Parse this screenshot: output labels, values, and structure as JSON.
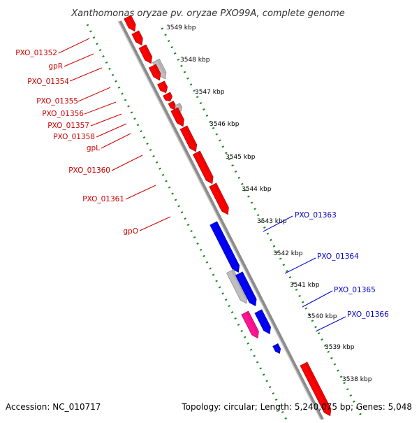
{
  "title": "Xanthomonas oryzae pv. oryzae PXO99A, complete genome",
  "accession": "Accession: NC_010717",
  "topology": "Topology: circular; Length: 5,240,075 bp; Genes: 5,048",
  "ticks": [
    "3549 kbp",
    "3548 kbp",
    "3547 kbp",
    "3546 kbp",
    "3545 kbp",
    "3544 kbp",
    "3543 kbp",
    "3542 kbp",
    "3541 kbp",
    "3540 kbp",
    "3539 kbp",
    "3538 kbp"
  ],
  "labels_left": [
    "PXO_01352",
    "gpR",
    "PXO_01354",
    "PXO_01355",
    "PXO_01356",
    "PXO_01357",
    "PXO_01358",
    "gpL",
    "PXO_01360",
    "PXO_01361",
    "gpO"
  ],
  "labels_right": [
    "PXO_01363",
    "PXO_01364",
    "PXO_01365",
    "PXO_01366"
  ],
  "colors": {
    "forward_gene": "#ff0000",
    "reverse_gene": "#0000ff",
    "pseudo_gene": "#bfbfbf",
    "pink_gene": "#ff1493",
    "left_label": "#cc0000",
    "right_label": "#0000cc",
    "backbone": "#8c8c8c",
    "tick_dots": "#1a8a1a"
  }
}
